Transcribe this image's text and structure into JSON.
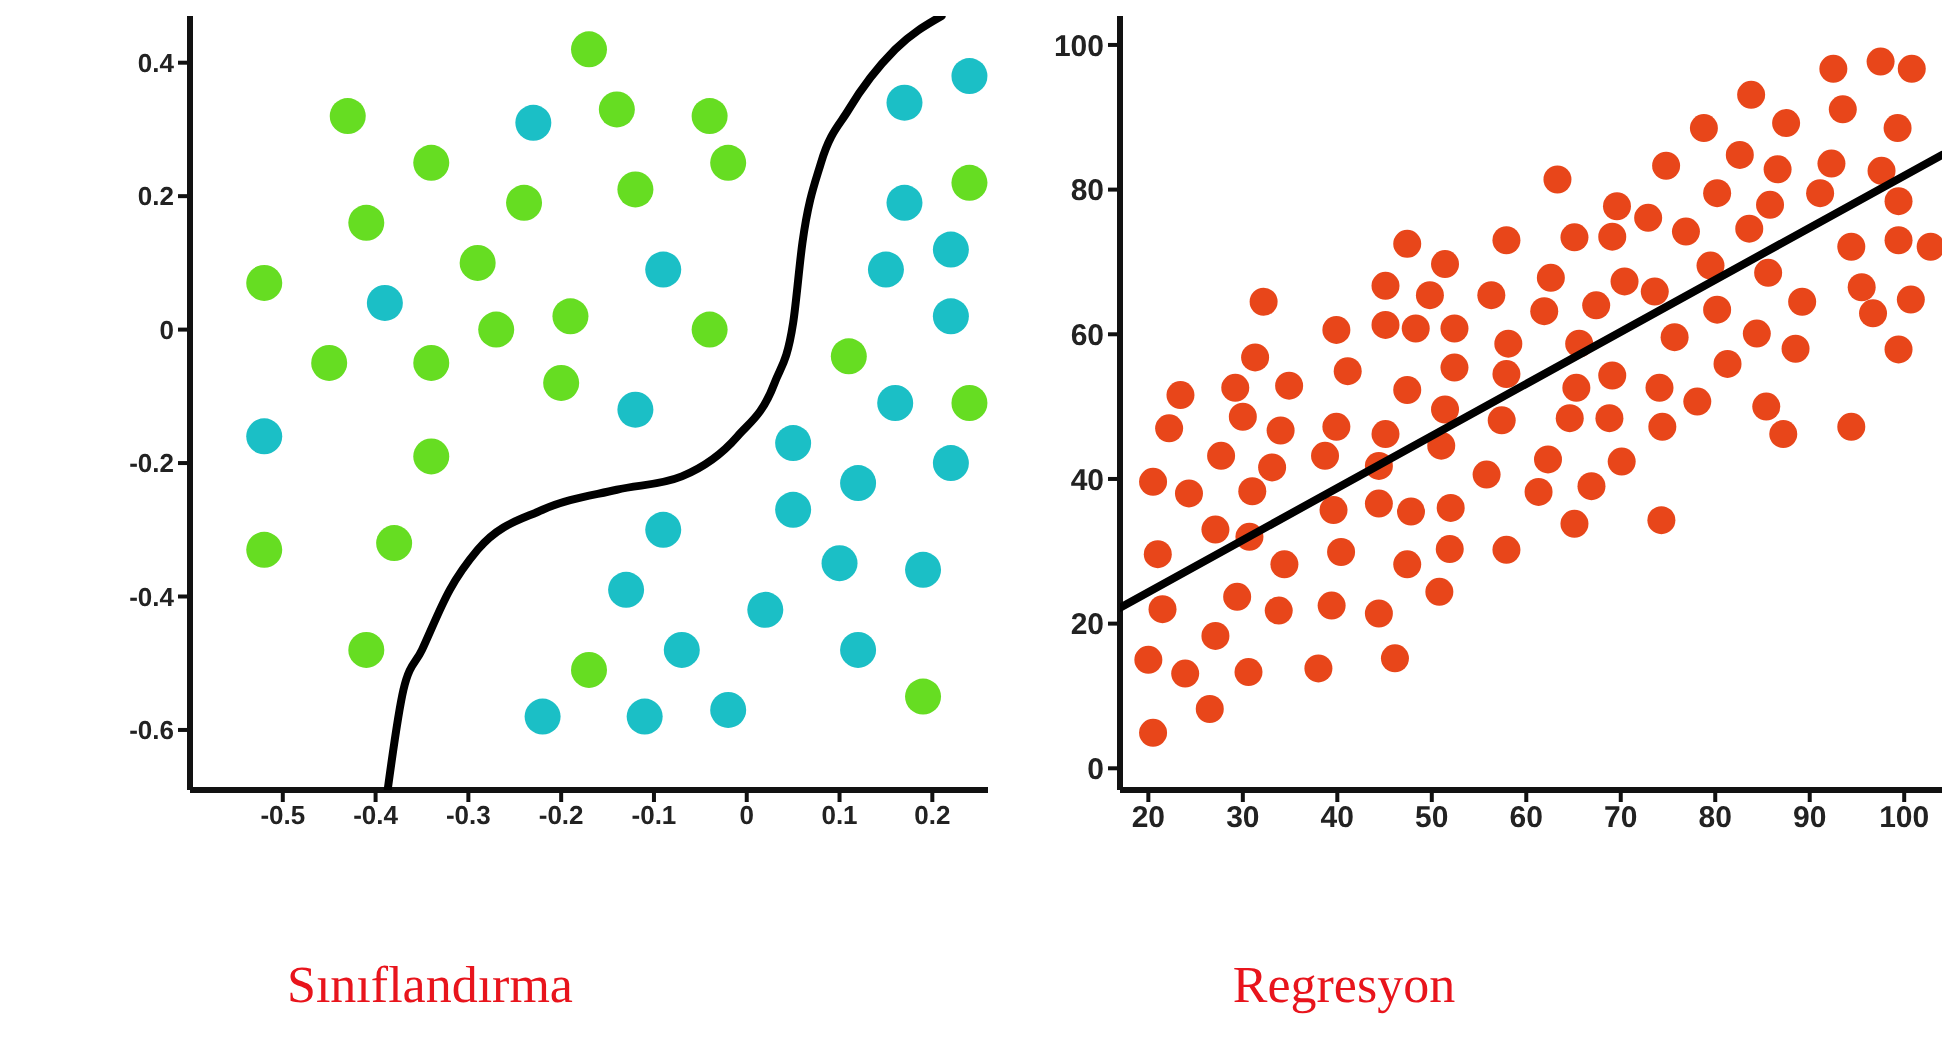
{
  "chart_data": [
    {
      "type": "scatter",
      "title": "Sınıflandırma",
      "xlim": [
        -0.6,
        0.26
      ],
      "ylim": [
        -0.69,
        0.47
      ],
      "xticks": [
        -0.5,
        -0.4,
        -0.3,
        -0.2,
        -0.1,
        0,
        0.1,
        0.2
      ],
      "yticks": [
        -0.6,
        -0.4,
        -0.2,
        0,
        0.2,
        0.4
      ],
      "grid": false,
      "legend": false,
      "series": [
        {
          "marker": "circle",
          "color": "#66dd22",
          "x": [
            -0.17,
            -0.43,
            -0.14,
            -0.04,
            -0.34,
            -0.02,
            -0.12,
            -0.24,
            -0.41,
            -0.29,
            -0.52,
            -0.19,
            -0.27,
            -0.04,
            -0.45,
            -0.34,
            -0.2,
            0.11,
            0.24,
            0.24,
            -0.34,
            -0.52,
            -0.38,
            -0.41,
            -0.17,
            0.19
          ],
          "values": [
            0.42,
            0.32,
            0.33,
            0.32,
            0.25,
            0.25,
            0.21,
            0.19,
            0.16,
            0.1,
            0.07,
            0.02,
            0.0,
            0.0,
            -0.05,
            -0.05,
            -0.08,
            -0.04,
            0.22,
            -0.11,
            -0.19,
            -0.33,
            -0.32,
            -0.48,
            -0.51,
            -0.55
          ]
        },
        {
          "marker": "circle",
          "color": "#1bbfc6",
          "x": [
            -0.23,
            0.24,
            0.17,
            0.17,
            0.22,
            0.15,
            0.22,
            -0.09,
            -0.39,
            -0.52,
            -0.12,
            0.16,
            0.05,
            0.22,
            0.12,
            0.05,
            -0.09,
            0.1,
            0.19,
            -0.13,
            0.02,
            -0.07,
            0.12,
            -0.22,
            -0.11,
            -0.02
          ],
          "values": [
            0.31,
            0.38,
            0.34,
            0.19,
            0.12,
            0.09,
            0.02,
            0.09,
            0.04,
            -0.16,
            -0.12,
            -0.11,
            -0.17,
            -0.2,
            -0.23,
            -0.27,
            -0.3,
            -0.35,
            -0.36,
            -0.39,
            -0.42,
            -0.48,
            -0.48,
            -0.58,
            -0.58,
            -0.57
          ]
        },
        {
          "type": "line",
          "marker": "none",
          "color": "#000000",
          "x": [
            -0.387,
            -0.37,
            -0.35,
            -0.32,
            -0.29,
            -0.22,
            -0.14,
            -0.07,
            -0.01,
            0.03,
            0.05,
            0.06,
            0.08,
            0.11,
            0.16,
            0.21
          ],
          "values": [
            -0.69,
            -0.54,
            -0.48,
            -0.39,
            -0.33,
            -0.27,
            -0.24,
            -0.22,
            -0.16,
            -0.08,
            0.01,
            0.13,
            0.25,
            0.33,
            0.42,
            0.47
          ]
        }
      ]
    },
    {
      "type": "scatter",
      "title": "Regresyon",
      "xlim": [
        17,
        104
      ],
      "ylim": [
        -3,
        104
      ],
      "xticks": [
        20,
        30,
        40,
        50,
        60,
        70,
        80,
        90,
        100
      ],
      "yticks": [
        0,
        20,
        40,
        60,
        80,
        100
      ],
      "grid": false,
      "legend": false,
      "series": [
        {
          "marker": "circle",
          "color": "#e8461a",
          "x": [
            20.5,
            21,
            20,
            20.5,
            21.5,
            22.2,
            23.4,
            24.3,
            23.9,
            26.5,
            27.1,
            27.1,
            27.7,
            29.2,
            30,
            29.4,
            30.6,
            31,
            30.7,
            31.3,
            32.2,
            33.1,
            33.8,
            34,
            34.4,
            34.9,
            38,
            38.7,
            39.4,
            39.6,
            39.9,
            39.9,
            40.4,
            41.1,
            44.4,
            44.4,
            44.4,
            45.1,
            45.1,
            45.1,
            46.1,
            47.4,
            47.4,
            47.4,
            47.8,
            48.3,
            49.8,
            50.8,
            51,
            51.4,
            51.4,
            51.9,
            52,
            52.4,
            52.4,
            55.8,
            56.3,
            57.4,
            57.9,
            57.9,
            58.1,
            57.9,
            61.3,
            61.9,
            62.3,
            62.6,
            63.3,
            64.6,
            65.1,
            65.1,
            65.3,
            65.6,
            66.9,
            67.4,
            68.8,
            69.1,
            69.1,
            69.6,
            70.1,
            70.4,
            72.9,
            73.6,
            74.1,
            74.3,
            74.4,
            74.8,
            75.7,
            76.9,
            78.1,
            78.8,
            79.5,
            80.2,
            80.2,
            81.3,
            82.6,
            83.6,
            83.8,
            84.4,
            85.4,
            85.6,
            85.8,
            86.6,
            87.2,
            87.5,
            88.5,
            89.2,
            91.1,
            92.3,
            92.5,
            93.5,
            94.4,
            94.4,
            95.5,
            96.7,
            97.5,
            97.6,
            99.3,
            99.4,
            99.4,
            99.4,
            100.7,
            100.8,
            102.8
          ],
          "values": [
            39.6,
            29.6,
            15,
            4.9,
            22,
            47,
            51.6,
            38,
            13.1,
            8.2,
            18.3,
            33,
            43.2,
            52.6,
            48.6,
            23.7,
            13.3,
            38.3,
            32,
            56.8,
            64.5,
            41.6,
            21.8,
            46.7,
            28.2,
            52.9,
            13.8,
            43.2,
            22.5,
            35.7,
            47.2,
            60.6,
            29.9,
            54.9,
            21.4,
            36.6,
            41.8,
            46.2,
            61.3,
            66.7,
            15.2,
            28.2,
            52.3,
            72.5,
            35.5,
            60.8,
            65.4,
            24.4,
            44.6,
            49.6,
            69.7,
            30.3,
            36,
            55.4,
            60.8,
            40.6,
            65.4,
            48.1,
            30.2,
            54.5,
            58.7,
            73,
            38.2,
            63.2,
            42.7,
            67.8,
            81.4,
            48.4,
            33.8,
            73.4,
            52.6,
            58.7,
            39,
            64,
            48.4,
            54.3,
            73.5,
            77.7,
            42.4,
            67.3,
            76.1,
            65.9,
            52.6,
            34.3,
            47.2,
            83.3,
            59.6,
            74.2,
            50.7,
            88.5,
            69.5,
            79.5,
            63.4,
            55.9,
            84.8,
            74.6,
            93.1,
            60.1,
            50,
            68.5,
            77.9,
            82.8,
            46.2,
            89.2,
            58,
            64.5,
            79.5,
            83.6,
            96.7,
            91.1,
            72.1,
            47.2,
            66.5,
            62.9,
            97.7,
            82.6,
            88.5,
            78.4,
            73,
            57.9,
            64.8,
            96.7,
            72.1
          ]
        },
        {
          "type": "line",
          "marker": "none",
          "color": "#000000",
          "x": [
            17,
            104
          ],
          "values": [
            22.2,
            84.8
          ]
        }
      ]
    }
  ]
}
